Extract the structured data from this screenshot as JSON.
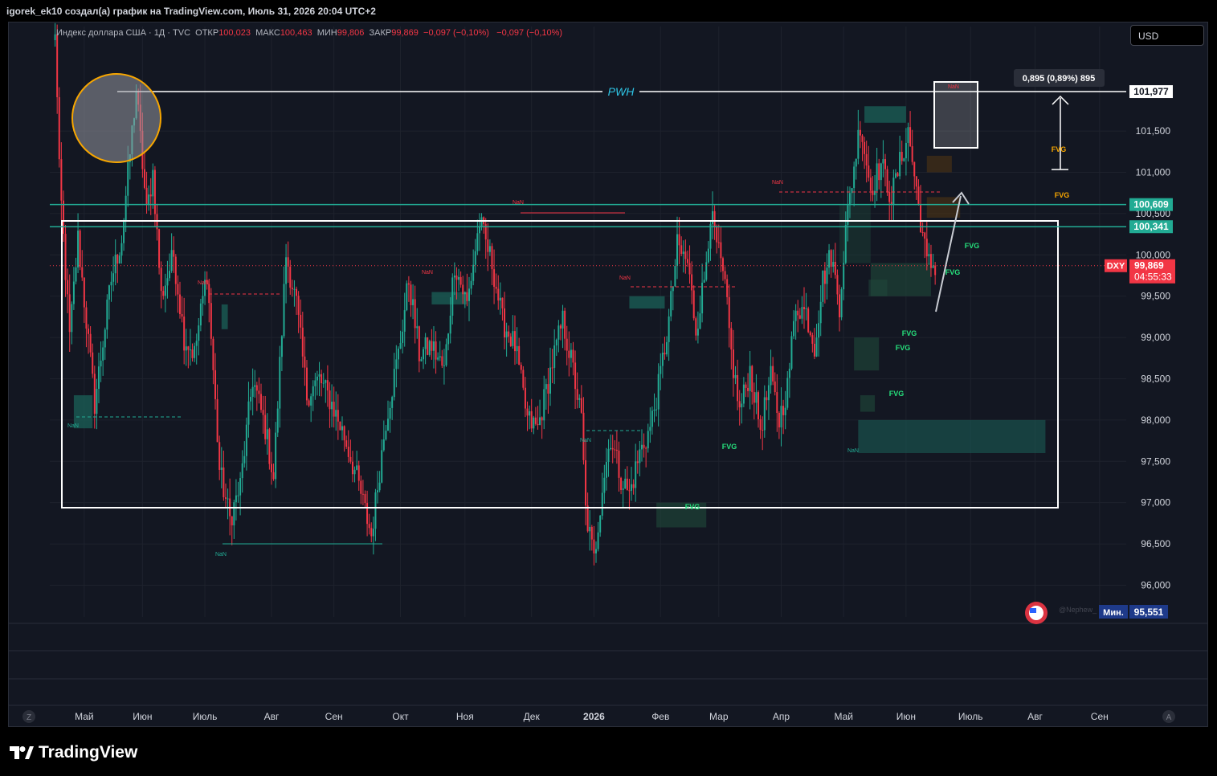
{
  "caption": "igorek_ek10 создал(а) график на TradingView.com, Июль 31, 2026 20:04 UTC+2",
  "legend": {
    "symbol": "Индекс доллара США · 1Д · TVC",
    "open_label": "ОТКР",
    "open": "100,023",
    "high_label": "МАКС",
    "high": "100,463",
    "low_label": "МИН",
    "low": "99,806",
    "close_label": "ЗАКР",
    "close": "99,869",
    "change": "−0,097 (−0,10%)",
    "change2": "−0,097 (−0,10%)"
  },
  "currency": "USD",
  "brand": "TradingView",
  "chart_data": {
    "type": "candlestick",
    "symbol": "DXY",
    "y_range": [
      95.6,
      102.6
    ],
    "price_ticks": [
      "101,500",
      "101,000",
      "100,500",
      "100,000",
      "99,500",
      "99,000",
      "98,500",
      "98,000",
      "97,500",
      "97,000",
      "96,500",
      "96,000"
    ],
    "price_tick_values": [
      101.5,
      101.0,
      100.5,
      100.0,
      99.5,
      99.0,
      98.5,
      98.0,
      97.5,
      97.0,
      96.5,
      96.0
    ],
    "time_ticks": [
      "Май",
      "Июн",
      "Июль",
      "Авг",
      "Сен",
      "Окт",
      "Ноя",
      "Дек",
      "2026",
      "Фев",
      "Мар",
      "Апр",
      "Май",
      "Июн",
      "Июль",
      "Авг",
      "Сен"
    ],
    "time_tick_index": [
      15,
      43,
      73,
      105,
      135,
      167,
      198,
      230,
      260,
      292,
      320,
      350,
      380,
      410,
      441,
      472,
      503
    ],
    "bar_count": 470,
    "anchors": [
      [
        0,
        103.6
      ],
      [
        3,
        101.0
      ],
      [
        8,
        99.0
      ],
      [
        12,
        100.2
      ],
      [
        20,
        98.2
      ],
      [
        28,
        99.7
      ],
      [
        33,
        100.2
      ],
      [
        40,
        102.0
      ],
      [
        45,
        100.5
      ],
      [
        48,
        101.0
      ],
      [
        52,
        99.5
      ],
      [
        58,
        100.0
      ],
      [
        63,
        99.0
      ],
      [
        68,
        98.8
      ],
      [
        74,
        99.8
      ],
      [
        80,
        97.4
      ],
      [
        85,
        96.8
      ],
      [
        90,
        97.2
      ],
      [
        96,
        98.5
      ],
      [
        102,
        97.9
      ],
      [
        106,
        97.3
      ],
      [
        112,
        100.0
      ],
      [
        117,
        99.4
      ],
      [
        122,
        98.3
      ],
      [
        128,
        98.5
      ],
      [
        134,
        98.2
      ],
      [
        140,
        97.8
      ],
      [
        146,
        97.3
      ],
      [
        153,
        96.6
      ],
      [
        160,
        98.0
      ],
      [
        166,
        98.8
      ],
      [
        171,
        99.7
      ],
      [
        176,
        98.8
      ],
      [
        182,
        98.9
      ],
      [
        188,
        98.6
      ],
      [
        193,
        99.9
      ],
      [
        199,
        99.4
      ],
      [
        205,
        100.4
      ],
      [
        211,
        99.9
      ],
      [
        216,
        99.2
      ],
      [
        222,
        98.9
      ],
      [
        228,
        98.0
      ],
      [
        233,
        97.9
      ],
      [
        240,
        98.7
      ],
      [
        245,
        99.2
      ],
      [
        250,
        98.6
      ],
      [
        254,
        98.0
      ],
      [
        256,
        96.9
      ],
      [
        260,
        96.3
      ],
      [
        264,
        97.2
      ],
      [
        268,
        97.8
      ],
      [
        273,
        97.3
      ],
      [
        277,
        97.1
      ],
      [
        282,
        97.6
      ],
      [
        287,
        97.9
      ],
      [
        291,
        98.4
      ],
      [
        296,
        99.2
      ],
      [
        300,
        100.1
      ],
      [
        305,
        99.9
      ],
      [
        309,
        99.1
      ],
      [
        313,
        99.7
      ],
      [
        316,
        100.5
      ],
      [
        320,
        100.0
      ],
      [
        323,
        99.6
      ],
      [
        326,
        98.8
      ],
      [
        330,
        98.1
      ],
      [
        335,
        98.6
      ],
      [
        340,
        97.9
      ],
      [
        345,
        98.5
      ],
      [
        349,
        98.0
      ],
      [
        353,
        98.4
      ],
      [
        357,
        99.4
      ],
      [
        362,
        99.3
      ],
      [
        366,
        98.9
      ],
      [
        370,
        99.7
      ],
      [
        374,
        100.0
      ],
      [
        378,
        99.4
      ],
      [
        381,
        100.3
      ],
      [
        384,
        100.9
      ],
      [
        388,
        101.6
      ],
      [
        393,
        100.8
      ],
      [
        398,
        101.1
      ],
      [
        403,
        100.7
      ],
      [
        408,
        101.2
      ],
      [
        411,
        101.5
      ],
      [
        416,
        100.6
      ],
      [
        420,
        99.9
      ],
      [
        424,
        99.87
      ]
    ],
    "horizontal_lines": [
      {
        "label": "101,977",
        "value": 101.977,
        "color": "#ffffff",
        "text": "PWH"
      },
      {
        "label": "100,609",
        "value": 100.609,
        "color": "#22ab94"
      },
      {
        "label": "100,341",
        "value": 100.341,
        "color": "#22ab94"
      }
    ],
    "last_price": {
      "symbol": "DXY",
      "price": "99,869",
      "countdown": "04:55:33",
      "value": 99.869,
      "color": "#f23645"
    },
    "min_label": {
      "label": "Мин.",
      "price": "95,551"
    },
    "measure_label": "0,895 (0,89%) 895",
    "range_box": {
      "from_index": 6,
      "to_index": 458,
      "high": 100.3,
      "low": 96.8
    },
    "fvg_labels": [
      "FVG",
      "FVG",
      "FVG",
      "FVG",
      "FVG",
      "FVG",
      "FVG",
      "FVG",
      "FVG",
      "FVG"
    ],
    "nan_labels": [
      "NaN",
      "NaN",
      "NaN",
      "NaN",
      "NaN",
      "NaN",
      "NaN",
      "NaN",
      "NaN",
      "NaN",
      "NaN"
    ],
    "watermark": "@Nephew_",
    "axis_corner_left": "Z",
    "axis_corner_right": "A",
    "colors": {
      "up": "#22ab94",
      "down": "#f23645",
      "teal_zone": "#1a5c55",
      "fvg_orange": "#f7a600",
      "fvg_green": "#26e07c"
    }
  }
}
